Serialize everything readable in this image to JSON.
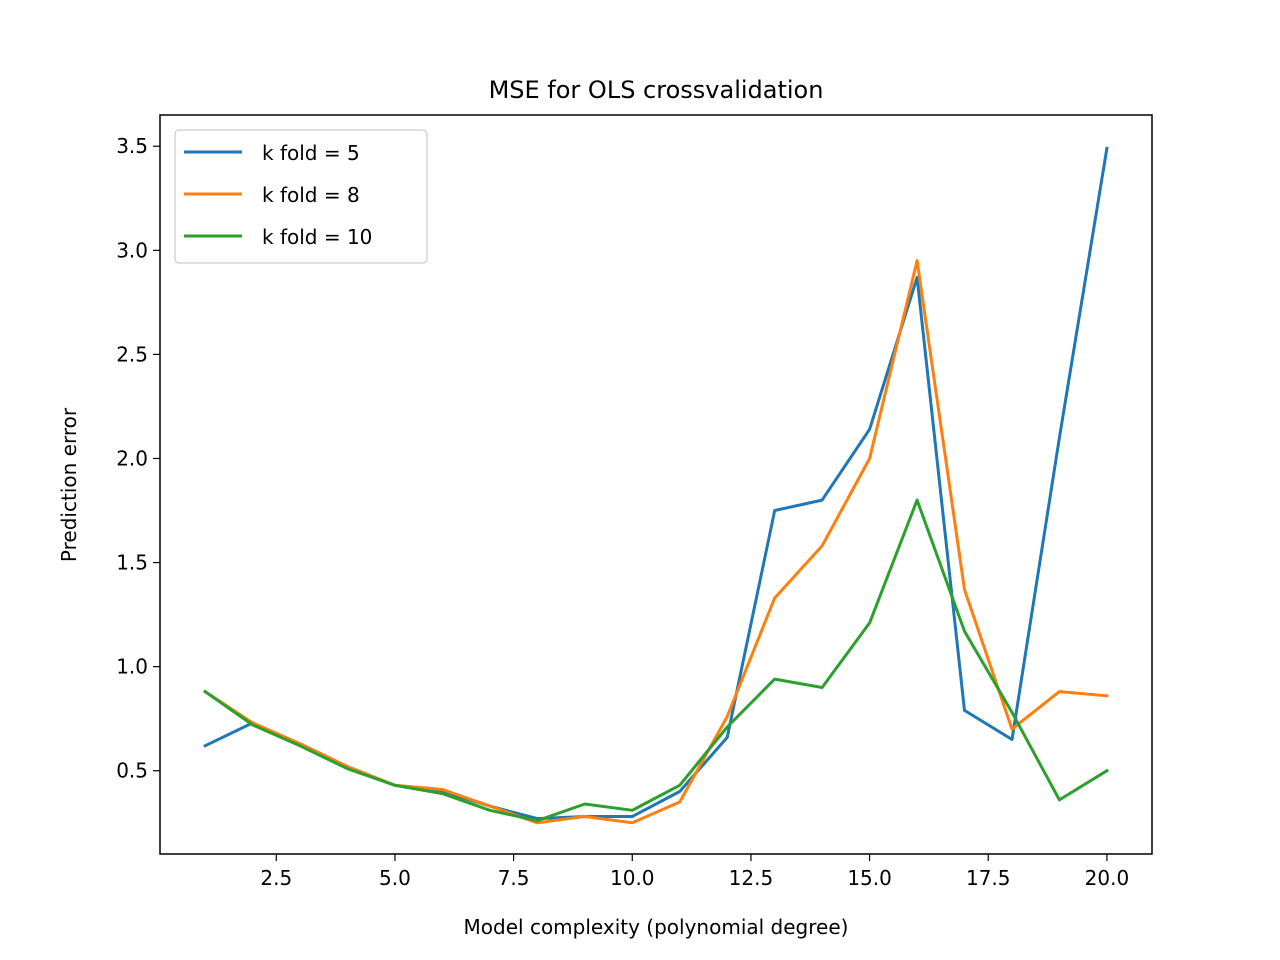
{
  "chart_data": {
    "type": "line",
    "title": "MSE for OLS crossvalidation",
    "xlabel": "Model complexity (polynomial degree)",
    "ylabel": "Prediction error",
    "xlim": [
      0.05,
      20.95
    ],
    "ylim": [
      0.1,
      3.65
    ],
    "xticks": [
      2.5,
      5.0,
      7.5,
      10.0,
      12.5,
      15.0,
      17.5,
      20.0
    ],
    "xtick_labels": [
      "2.5",
      "5.0",
      "7.5",
      "10.0",
      "12.5",
      "15.0",
      "17.5",
      "20.0"
    ],
    "yticks": [
      0.5,
      1.0,
      1.5,
      2.0,
      2.5,
      3.0,
      3.5
    ],
    "ytick_labels": [
      "0.5",
      "1.0",
      "1.5",
      "2.0",
      "2.5",
      "3.0",
      "3.5"
    ],
    "grid": false,
    "legend_position": "top-left",
    "x": [
      1,
      2,
      3,
      4,
      5,
      6,
      7,
      8,
      9,
      10,
      11,
      12,
      13,
      14,
      15,
      16,
      17,
      18,
      19,
      20
    ],
    "series": [
      {
        "name": "k fold = 5",
        "color": "#1f77b4",
        "values": [
          0.62,
          0.73,
          0.63,
          0.52,
          0.43,
          0.4,
          0.33,
          0.27,
          0.28,
          0.28,
          0.4,
          0.66,
          1.75,
          1.8,
          2.14,
          2.87,
          0.79,
          0.65,
          2.1,
          3.49
        ]
      },
      {
        "name": "k fold = 8",
        "color": "#ff7f0e",
        "values": [
          0.88,
          0.73,
          0.63,
          0.52,
          0.43,
          0.41,
          0.33,
          0.25,
          0.28,
          0.25,
          0.35,
          0.76,
          1.33,
          1.58,
          2.0,
          2.95,
          1.37,
          0.7,
          0.88,
          0.86
        ]
      },
      {
        "name": "k fold = 10",
        "color": "#2ca02c",
        "values": [
          0.88,
          0.72,
          0.62,
          0.51,
          0.43,
          0.39,
          0.31,
          0.26,
          0.34,
          0.31,
          0.43,
          0.71,
          0.94,
          0.9,
          1.21,
          1.8,
          1.17,
          0.78,
          0.36,
          0.5
        ]
      }
    ]
  }
}
